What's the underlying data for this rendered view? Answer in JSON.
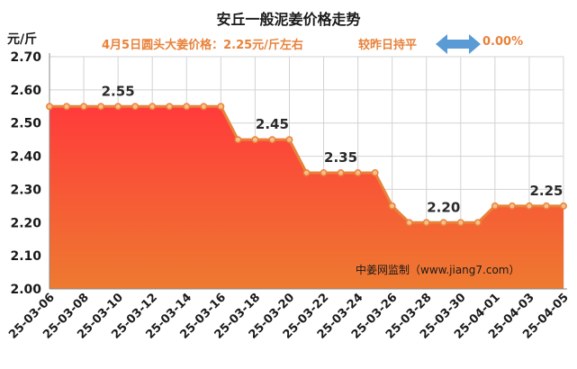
{
  "title": "安丘一般泥姜价格走势",
  "unit_label": "元/斤",
  "subtitle": "4月5日圆头大姜价格：2.25元/斤左右",
  "compare_label": "较昨日持平",
  "compare_pct": "0.00%",
  "source": "中姜网监制（www.jiang7.com）",
  "colors": {
    "line": "#e8823a",
    "area_top": "#ff3b3b",
    "area_bottom": "#ee7a30",
    "grid": "#d3d3d3",
    "marker_fill": "#f7c08a",
    "arrow": "#5b9bd5",
    "text_accent": "#e8823a"
  },
  "icons": {
    "compare": "double-arrow-icon"
  },
  "chart_data": {
    "type": "area",
    "title": "安丘一般泥姜价格走势",
    "ylabel": "元/斤",
    "ylim": [
      2.0,
      2.7
    ],
    "yticks": [
      "2.00",
      "2.10",
      "2.20",
      "2.30",
      "2.40",
      "2.50",
      "2.60",
      "2.70"
    ],
    "grid": true,
    "x": [
      "25-03-06",
      "25-03-07",
      "25-03-08",
      "25-03-09",
      "25-03-10",
      "25-03-11",
      "25-03-12",
      "25-03-13",
      "25-03-14",
      "25-03-15",
      "25-03-16",
      "25-03-17",
      "25-03-18",
      "25-03-19",
      "25-03-20",
      "25-03-21",
      "25-03-22",
      "25-03-23",
      "25-03-24",
      "25-03-25",
      "25-03-26",
      "25-03-27",
      "25-03-28",
      "25-03-29",
      "25-03-30",
      "25-03-31",
      "25-04-01",
      "25-04-02",
      "25-04-03",
      "25-04-04",
      "25-04-05"
    ],
    "xtick_labels": [
      "25-03-06",
      "25-03-08",
      "25-03-10",
      "25-03-12",
      "25-03-14",
      "25-03-16",
      "25-03-18",
      "25-03-20",
      "25-03-22",
      "25-03-24",
      "25-03-26",
      "25-03-28",
      "25-03-30",
      "25-04-01",
      "25-04-03",
      "25-04-05"
    ],
    "values": [
      2.55,
      2.55,
      2.55,
      2.55,
      2.55,
      2.55,
      2.55,
      2.55,
      2.55,
      2.55,
      2.55,
      2.45,
      2.45,
      2.45,
      2.45,
      2.35,
      2.35,
      2.35,
      2.35,
      2.35,
      2.25,
      2.2,
      2.2,
      2.2,
      2.2,
      2.2,
      2.25,
      2.25,
      2.25,
      2.25,
      2.25
    ],
    "annotations": [
      {
        "index": 4,
        "text": "2.55"
      },
      {
        "index": 13,
        "text": "2.45"
      },
      {
        "index": 17,
        "text": "2.35"
      },
      {
        "index": 23,
        "text": "2.20"
      },
      {
        "index": 29,
        "text": "2.25"
      }
    ]
  }
}
